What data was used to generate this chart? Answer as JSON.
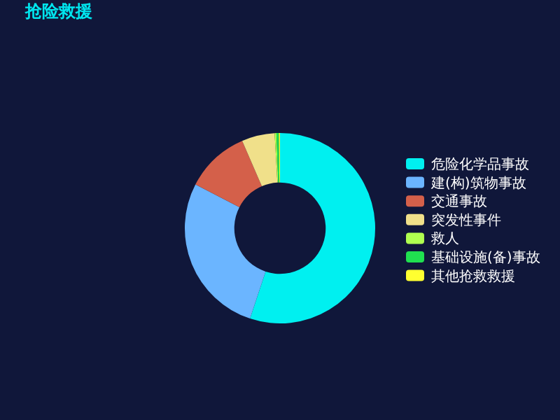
{
  "chart_data": {
    "type": "donut",
    "title": "抢险救援",
    "legend": "right",
    "categories": [
      "危险化学品事故",
      "建(构)筑物事故",
      "交通事故",
      "突发性事件",
      "救人",
      "基础设施(备)事故",
      "其他抢救救援"
    ],
    "values": [
      55.1,
      27.5,
      10.9,
      5.6,
      0.3,
      0.4,
      0.2
    ],
    "colors": [
      "#00f0f0",
      "#6bb5ff",
      "#d4604a",
      "#f0e08a",
      "#b0ff50",
      "#20e050",
      "#ffff30"
    ]
  }
}
